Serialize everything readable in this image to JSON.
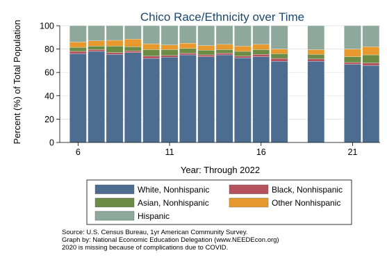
{
  "chart_data": {
    "type": "bar",
    "stacked": true,
    "title": "Chico Race/Ethnicity over Time",
    "xlabel": "Year: Through 2022",
    "ylabel": "Percent (%) of Total Population",
    "x": [
      6,
      7,
      8,
      9,
      10,
      11,
      12,
      13,
      14,
      15,
      16,
      17,
      18,
      19,
      20,
      21,
      22
    ],
    "xlim": [
      5,
      22.5
    ],
    "xticks": [
      6,
      11,
      16,
      21
    ],
    "ylim": [
      0,
      100
    ],
    "yticks": [
      0,
      20,
      40,
      60,
      80,
      100
    ],
    "grid": true,
    "legend": "bottom",
    "series": [
      {
        "name": "White, Nonhispanic",
        "color": "#4c6d8f",
        "values": [
          76,
          78,
          75.5,
          77,
          72,
          73,
          75,
          73.5,
          75,
          72.5,
          73.5,
          69.5,
          null,
          69.5,
          null,
          67,
          66
        ]
      },
      {
        "name": "Black, Nonhispanic",
        "color": "#b5525e",
        "values": [
          2,
          1.5,
          1.5,
          1.5,
          2,
          1.5,
          1.5,
          1.5,
          1.5,
          1.5,
          2,
          2.5,
          null,
          2,
          null,
          1.5,
          2
        ]
      },
      {
        "name": "Asian, Nonhispanic",
        "color": "#6b8c47",
        "values": [
          3.5,
          3,
          5.5,
          3.5,
          5.5,
          5,
          4,
          4,
          3,
          4,
          4,
          4,
          null,
          4,
          null,
          5,
          7
        ]
      },
      {
        "name": "Other Nonhispanic",
        "color": "#e8992e",
        "values": [
          4.5,
          4.5,
          5,
          6.5,
          5,
          4,
          4.5,
          4,
          4.5,
          4.5,
          4.5,
          4,
          null,
          4,
          null,
          6.5,
          7
        ]
      },
      {
        "name": "Hispanic",
        "color": "#8ea99c",
        "values": [
          14,
          13,
          12.5,
          11.5,
          15.5,
          16.5,
          15,
          17,
          16,
          17.5,
          16,
          20,
          null,
          20.5,
          null,
          20,
          18
        ]
      }
    ],
    "notes": [
      "Source:  U.S. Census Bureau, 1yr American Community Survey.",
      "Graph by: National Economic Education Delegation (www.NEEDEcon.org)",
      "2020 is missing because of complications due to COVID."
    ]
  }
}
